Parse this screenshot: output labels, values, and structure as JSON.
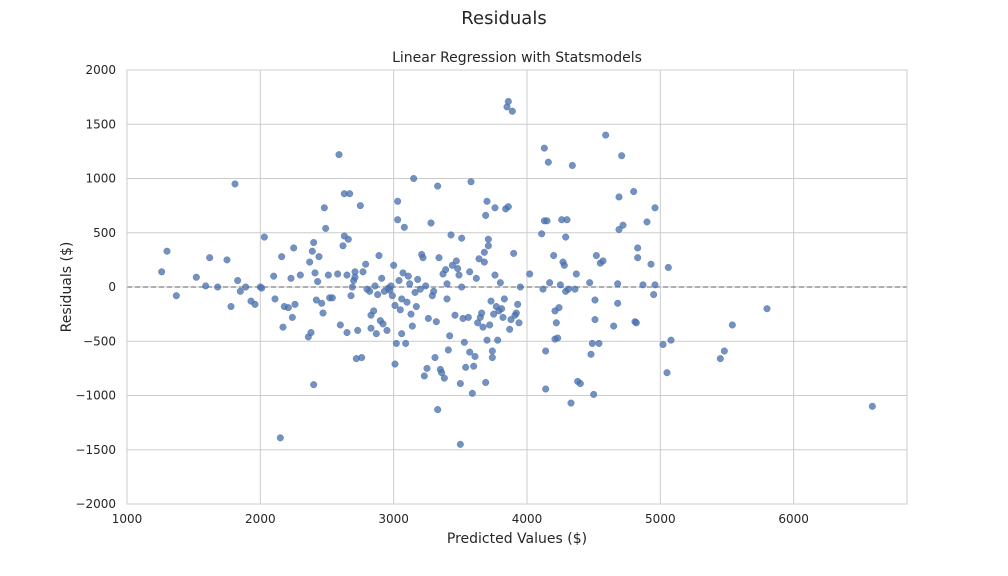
{
  "figure": {
    "suptitle": "Residuals"
  },
  "chart_data": {
    "type": "scatter",
    "title": "Linear Regression with Statsmodels",
    "xlabel": "Predicted Values ($)",
    "ylabel": "Residuals ($)",
    "xlim": [
      1000,
      6850
    ],
    "ylim": [
      -2000,
      2000
    ],
    "xticks": [
      1000,
      2000,
      3000,
      4000,
      5000,
      6000
    ],
    "yticks": [
      -2000,
      -1500,
      -1000,
      -500,
      0,
      500,
      1000,
      1500,
      2000
    ],
    "grid": true,
    "reference_line": {
      "y": 0,
      "style": "dashed"
    },
    "colors": {
      "point": "#4c72b0",
      "reference_line": "#808080",
      "grid": "#cccccc"
    },
    "points": [
      [
        1260,
        140
      ],
      [
        1300,
        330
      ],
      [
        1370,
        -80
      ],
      [
        1520,
        90
      ],
      [
        1590,
        10
      ],
      [
        1620,
        270
      ],
      [
        1680,
        0
      ],
      [
        1750,
        250
      ],
      [
        1780,
        -180
      ],
      [
        1810,
        950
      ],
      [
        1830,
        60
      ],
      [
        1850,
        -40
      ],
      [
        1890,
        0
      ],
      [
        1930,
        -130
      ],
      [
        1960,
        -160
      ],
      [
        2000,
        0
      ],
      [
        2010,
        -10
      ],
      [
        2030,
        460
      ],
      [
        2100,
        100
      ],
      [
        2110,
        -110
      ],
      [
        2150,
        -1390
      ],
      [
        2160,
        280
      ],
      [
        2170,
        -370
      ],
      [
        2180,
        -180
      ],
      [
        2210,
        -190
      ],
      [
        2230,
        80
      ],
      [
        2240,
        -280
      ],
      [
        2250,
        360
      ],
      [
        2260,
        -160
      ],
      [
        2300,
        110
      ],
      [
        2360,
        -460
      ],
      [
        2370,
        230
      ],
      [
        2380,
        -420
      ],
      [
        2390,
        330
      ],
      [
        2400,
        410
      ],
      [
        2400,
        -900
      ],
      [
        2410,
        130
      ],
      [
        2420,
        -120
      ],
      [
        2430,
        50
      ],
      [
        2440,
        280
      ],
      [
        2460,
        -150
      ],
      [
        2470,
        -240
      ],
      [
        2480,
        730
      ],
      [
        2490,
        540
      ],
      [
        2510,
        110
      ],
      [
        2520,
        -100
      ],
      [
        2540,
        -100
      ],
      [
        2580,
        120
      ],
      [
        2590,
        1220
      ],
      [
        2600,
        -350
      ],
      [
        2620,
        380
      ],
      [
        2630,
        860
      ],
      [
        2630,
        470
      ],
      [
        2650,
        -420
      ],
      [
        2650,
        110
      ],
      [
        2660,
        440
      ],
      [
        2670,
        860
      ],
      [
        2680,
        -80
      ],
      [
        2690,
        0
      ],
      [
        2700,
        60
      ],
      [
        2710,
        140
      ],
      [
        2710,
        90
      ],
      [
        2720,
        -660
      ],
      [
        2730,
        -400
      ],
      [
        2750,
        750
      ],
      [
        2760,
        -650
      ],
      [
        2770,
        140
      ],
      [
        2790,
        210
      ],
      [
        2800,
        -20
      ],
      [
        2820,
        -40
      ],
      [
        2830,
        -260
      ],
      [
        2830,
        -380
      ],
      [
        2850,
        -220
      ],
      [
        2860,
        10
      ],
      [
        2870,
        -430
      ],
      [
        2880,
        -70
      ],
      [
        2890,
        290
      ],
      [
        2900,
        -310
      ],
      [
        2910,
        80
      ],
      [
        2920,
        -340
      ],
      [
        2930,
        -40
      ],
      [
        2950,
        -400
      ],
      [
        2960,
        -10
      ],
      [
        2970,
        -30
      ],
      [
        2980,
        10
      ],
      [
        2990,
        -80
      ],
      [
        3000,
        200
      ],
      [
        3010,
        -170
      ],
      [
        3010,
        -710
      ],
      [
        3020,
        -520
      ],
      [
        3030,
        790
      ],
      [
        3030,
        620
      ],
      [
        3040,
        60
      ],
      [
        3050,
        -210
      ],
      [
        3060,
        -430
      ],
      [
        3060,
        -110
      ],
      [
        3070,
        130
      ],
      [
        3080,
        550
      ],
      [
        3090,
        -520
      ],
      [
        3100,
        -140
      ],
      [
        3110,
        100
      ],
      [
        3120,
        30
      ],
      [
        3130,
        -250
      ],
      [
        3140,
        -360
      ],
      [
        3150,
        1000
      ],
      [
        3160,
        -50
      ],
      [
        3170,
        -180
      ],
      [
        3180,
        70
      ],
      [
        3200,
        -20
      ],
      [
        3210,
        300
      ],
      [
        3220,
        270
      ],
      [
        3230,
        -820
      ],
      [
        3240,
        10
      ],
      [
        3250,
        -750
      ],
      [
        3260,
        -290
      ],
      [
        3280,
        590
      ],
      [
        3290,
        -80
      ],
      [
        3300,
        -40
      ],
      [
        3310,
        -650
      ],
      [
        3320,
        -320
      ],
      [
        3330,
        930
      ],
      [
        3330,
        -1130
      ],
      [
        3340,
        270
      ],
      [
        3350,
        -760
      ],
      [
        3360,
        -790
      ],
      [
        3370,
        120
      ],
      [
        3380,
        -840
      ],
      [
        3390,
        160
      ],
      [
        3400,
        30
      ],
      [
        3400,
        -110
      ],
      [
        3410,
        -580
      ],
      [
        3420,
        -450
      ],
      [
        3430,
        480
      ],
      [
        3440,
        200
      ],
      [
        3460,
        -260
      ],
      [
        3470,
        240
      ],
      [
        3480,
        170
      ],
      [
        3490,
        110
      ],
      [
        3500,
        -890
      ],
      [
        3500,
        -1450
      ],
      [
        3510,
        0
      ],
      [
        3510,
        450
      ],
      [
        3520,
        -290
      ],
      [
        3530,
        -510
      ],
      [
        3540,
        -740
      ],
      [
        3560,
        -280
      ],
      [
        3570,
        140
      ],
      [
        3570,
        -600
      ],
      [
        3580,
        970
      ],
      [
        3590,
        -980
      ],
      [
        3600,
        -730
      ],
      [
        3610,
        -640
      ],
      [
        3620,
        80
      ],
      [
        3630,
        -330
      ],
      [
        3640,
        260
      ],
      [
        3650,
        -280
      ],
      [
        3660,
        -240
      ],
      [
        3670,
        -370
      ],
      [
        3680,
        230
      ],
      [
        3680,
        320
      ],
      [
        3690,
        660
      ],
      [
        3690,
        -880
      ],
      [
        3700,
        -490
      ],
      [
        3700,
        790
      ],
      [
        3710,
        380
      ],
      [
        3710,
        440
      ],
      [
        3720,
        -350
      ],
      [
        3730,
        -130
      ],
      [
        3740,
        -590
      ],
      [
        3740,
        -650
      ],
      [
        3750,
        -250
      ],
      [
        3760,
        730
      ],
      [
        3760,
        110
      ],
      [
        3770,
        -180
      ],
      [
        3780,
        -490
      ],
      [
        3790,
        -220
      ],
      [
        3800,
        40
      ],
      [
        3810,
        -200
      ],
      [
        3820,
        -280
      ],
      [
        3830,
        -110
      ],
      [
        3840,
        720
      ],
      [
        3850,
        1660
      ],
      [
        3860,
        1710
      ],
      [
        3860,
        740
      ],
      [
        3870,
        -390
      ],
      [
        3880,
        -300
      ],
      [
        3890,
        1620
      ],
      [
        3900,
        310
      ],
      [
        3910,
        -260
      ],
      [
        3920,
        -240
      ],
      [
        3930,
        -160
      ],
      [
        3940,
        -330
      ],
      [
        3950,
        0
      ],
      [
        4020,
        120
      ],
      [
        4110,
        490
      ],
      [
        4120,
        -20
      ],
      [
        4130,
        1280
      ],
      [
        4130,
        610
      ],
      [
        4140,
        -590
      ],
      [
        4140,
        -940
      ],
      [
        4150,
        610
      ],
      [
        4160,
        1150
      ],
      [
        4170,
        40
      ],
      [
        4200,
        290
      ],
      [
        4210,
        -480
      ],
      [
        4210,
        -220
      ],
      [
        4220,
        -330
      ],
      [
        4230,
        -470
      ],
      [
        4240,
        -190
      ],
      [
        4250,
        20
      ],
      [
        4260,
        620
      ],
      [
        4270,
        230
      ],
      [
        4280,
        200
      ],
      [
        4290,
        -40
      ],
      [
        4290,
        460
      ],
      [
        4300,
        620
      ],
      [
        4310,
        -20
      ],
      [
        4330,
        -1070
      ],
      [
        4340,
        1120
      ],
      [
        4360,
        -20
      ],
      [
        4370,
        120
      ],
      [
        4380,
        -870
      ],
      [
        4400,
        -890
      ],
      [
        4470,
        40
      ],
      [
        4480,
        -620
      ],
      [
        4490,
        -520
      ],
      [
        4500,
        -990
      ],
      [
        4510,
        -300
      ],
      [
        4510,
        -120
      ],
      [
        4520,
        290
      ],
      [
        4540,
        -520
      ],
      [
        4550,
        220
      ],
      [
        4570,
        240
      ],
      [
        4590,
        1400
      ],
      [
        4650,
        -360
      ],
      [
        4680,
        -150
      ],
      [
        4680,
        30
      ],
      [
        4690,
        530
      ],
      [
        4690,
        830
      ],
      [
        4710,
        1210
      ],
      [
        4720,
        570
      ],
      [
        4800,
        880
      ],
      [
        4810,
        -320
      ],
      [
        4820,
        -330
      ],
      [
        4830,
        360
      ],
      [
        4830,
        270
      ],
      [
        4870,
        20
      ],
      [
        4900,
        600
      ],
      [
        4930,
        210
      ],
      [
        4950,
        -70
      ],
      [
        4960,
        730
      ],
      [
        4960,
        20
      ],
      [
        5020,
        -530
      ],
      [
        5050,
        -790
      ],
      [
        5060,
        180
      ],
      [
        5080,
        -490
      ],
      [
        5450,
        -660
      ],
      [
        5480,
        -590
      ],
      [
        5540,
        -350
      ],
      [
        5800,
        -200
      ],
      [
        6590,
        -1100
      ]
    ]
  }
}
